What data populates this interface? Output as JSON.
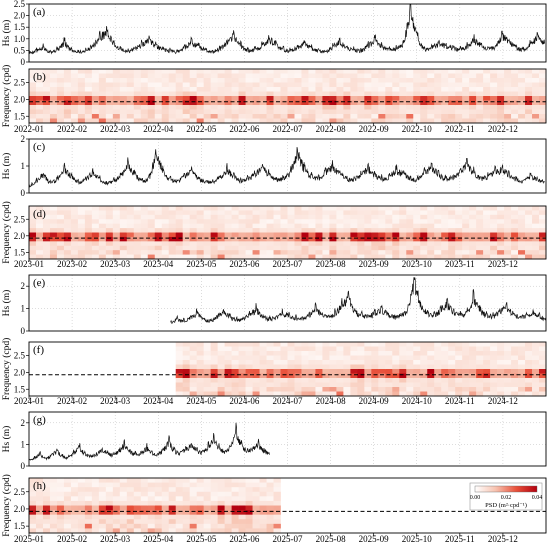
{
  "colorbar": {
    "label": "PSD (m²·cpd⁻¹)",
    "ticks": [
      "0.00",
      "0.02",
      "0.04"
    ],
    "range": [
      0,
      0.04
    ],
    "colors": [
      "#ffffff",
      "#f7c3b0",
      "#e8503a",
      "#b3000f"
    ]
  },
  "chart_data": [
    {
      "panel": "(a)",
      "type": "line",
      "year": 2022,
      "ylabel": "Hs (m)",
      "ylim": [
        0,
        2.5
      ],
      "yticks": [
        "0",
        "0.5",
        "1.0",
        "1.5",
        "2.0",
        "2.5"
      ],
      "x_start": "2022-01-01",
      "x_end": "2022-12-31",
      "series": [
        {
          "values": [
            0.45,
            0.55,
            0.7,
            0.5,
            0.6,
            0.95,
            0.6,
            0.5,
            0.55,
            0.8,
            1.2,
            1.5,
            0.9,
            0.6,
            0.5,
            0.7,
            0.85,
            1.1,
            0.8,
            0.6,
            0.55,
            0.5,
            0.7,
            1.0,
            0.75,
            0.6,
            0.5,
            0.65,
            0.9,
            1.3,
            0.8,
            0.55,
            0.6,
            0.8,
            1.15,
            0.85,
            0.6,
            0.55,
            0.7,
            0.95,
            0.7,
            0.55,
            0.5,
            0.75,
            1.0,
            0.7,
            0.6,
            0.55,
            0.8,
            1.05,
            0.75,
            0.6,
            0.65,
            0.85,
            2.45,
            1.2,
            0.6,
            0.7,
            0.9,
            0.8,
            0.7,
            0.6,
            0.75,
            1.1,
            0.85,
            0.65,
            0.7,
            1.3,
            1.0,
            0.7,
            0.6,
            0.85,
            1.2,
            0.9
          ]
        }
      ],
      "grid": true
    },
    {
      "panel": "(b)",
      "type": "heatmap",
      "year": 2022,
      "ylabel": "Frequency (cpd)",
      "ylim": [
        1.3,
        2.9
      ],
      "yticks": [
        "1.5",
        "2.0",
        "2.5"
      ],
      "reference_line": 1.93,
      "xticks": [
        "2022-01",
        "2022-02",
        "2022-03",
        "2022-04",
        "2022-05",
        "2022-06",
        "2022-07",
        "2022-08",
        "2022-09",
        "2022-10",
        "2022-11",
        "2022-12"
      ],
      "data_start_month": 0,
      "data_end_month": 12,
      "seed": 11
    },
    {
      "panel": "(c)",
      "type": "line",
      "year": 2023,
      "ylabel": "Hs (m)",
      "ylim": [
        0,
        2.0
      ],
      "yticks": [
        "0",
        "1",
        "2"
      ],
      "x_start": "2023-01-01",
      "x_end": "2023-12-31",
      "series": [
        {
          "values": [
            0.3,
            0.5,
            0.8,
            0.4,
            0.6,
            1.0,
            0.7,
            0.45,
            0.55,
            0.9,
            0.6,
            0.4,
            0.5,
            0.75,
            1.2,
            0.8,
            0.5,
            0.6,
            1.65,
            0.9,
            0.55,
            0.5,
            0.7,
            0.9,
            0.6,
            0.5,
            0.45,
            0.65,
            1.0,
            0.7,
            0.5,
            0.6,
            0.8,
            1.1,
            0.75,
            0.55,
            0.6,
            0.85,
            1.7,
            1.0,
            0.7,
            0.6,
            0.9,
            1.1,
            0.8,
            0.6,
            0.55,
            0.8,
            1.05,
            0.75,
            0.6,
            0.7,
            0.95,
            0.8,
            0.6,
            0.55,
            0.85,
            1.1,
            0.8,
            0.6,
            0.65,
            0.9,
            1.2,
            0.85,
            0.6,
            0.7,
            0.9,
            1.0,
            0.75,
            0.55,
            0.5,
            0.7,
            0.6,
            0.45
          ]
        }
      ],
      "grid": true
    },
    {
      "panel": "(d)",
      "type": "heatmap",
      "year": 2023,
      "ylabel": "Frequency (cpd)",
      "ylim": [
        1.3,
        2.9
      ],
      "yticks": [
        "1.5",
        "2.0",
        "2.5"
      ],
      "reference_line": 1.93,
      "xticks": [
        "2023-01",
        "2023-02",
        "2023-03",
        "2023-04",
        "2023-05",
        "2023-06",
        "2023-07",
        "2023-08",
        "2023-09",
        "2023-10",
        "2023-11",
        "2023-12"
      ],
      "data_start_month": 0,
      "data_end_month": 12,
      "seed": 23
    },
    {
      "panel": "(e)",
      "type": "line",
      "year": 2024,
      "ylabel": "Hs (m)",
      "ylim": [
        0,
        2.5
      ],
      "yticks": [
        "0",
        "1",
        "2"
      ],
      "x_start": "2024-04-10",
      "x_end": "2024-12-31",
      "series": [
        {
          "values": [
            0.4,
            0.6,
            0.5,
            0.7,
            0.9,
            0.6,
            0.5,
            0.7,
            1.0,
            0.7,
            0.55,
            0.6,
            0.85,
            1.1,
            0.75,
            0.6,
            0.7,
            0.9,
            0.8,
            0.65,
            0.6,
            0.8,
            1.15,
            0.8,
            0.7,
            0.9,
            1.3,
            1.7,
            1.0,
            0.8,
            0.75,
            0.9,
            1.1,
            0.85,
            0.7,
            0.8,
            1.0,
            2.5,
            1.3,
            0.9,
            0.75,
            1.1,
            1.4,
            0.9,
            0.8,
            0.9,
            1.7,
            1.0,
            0.8,
            0.75,
            1.0,
            1.2,
            0.85,
            0.7,
            0.8,
            0.9,
            0.75,
            0.6
          ]
        }
      ],
      "grid": true
    },
    {
      "panel": "(f)",
      "type": "heatmap",
      "year": 2024,
      "ylabel": "Frequency (cpd)",
      "ylim": [
        1.3,
        2.9
      ],
      "yticks": [
        "1.5",
        "2.0",
        "2.5"
      ],
      "reference_line": 1.93,
      "xticks": [
        "2024-01",
        "2024-02",
        "2024-03",
        "2024-04",
        "2024-05",
        "2024-06",
        "2024-07",
        "2024-08",
        "2024-09",
        "2024-10",
        "2024-11",
        "2024-12"
      ],
      "data_start_month": 3.3,
      "data_end_month": 12,
      "seed": 37
    },
    {
      "panel": "(g)",
      "type": "line",
      "year": 2025,
      "ylabel": "Hs (m)",
      "ylim": [
        0,
        2.5
      ],
      "yticks": [
        "0",
        "1",
        "2"
      ],
      "x_start": "2025-01-01",
      "x_end": "2025-06-20",
      "series": [
        {
          "values": [
            0.3,
            0.45,
            0.6,
            0.4,
            0.55,
            0.8,
            0.5,
            0.45,
            0.7,
            1.0,
            0.6,
            0.5,
            0.6,
            0.9,
            0.7,
            0.55,
            0.8,
            1.1,
            0.75,
            0.6,
            0.7,
            0.95,
            0.7,
            0.6,
            0.85,
            1.25,
            0.8,
            0.65,
            0.9,
            1.1,
            0.8,
            0.7,
            1.0,
            1.5,
            0.9,
            0.75,
            1.0,
            1.85,
            1.0,
            0.8,
            0.9,
            1.15,
            0.8,
            0.6
          ]
        }
      ],
      "grid": true
    },
    {
      "panel": "(h)",
      "type": "heatmap",
      "year": 2025,
      "ylabel": "Frequency (cpd)",
      "ylim": [
        1.3,
        2.9
      ],
      "yticks": [
        "1.5",
        "2.0",
        "2.5"
      ],
      "reference_line": 1.93,
      "xticks": [
        "2025-01",
        "2025-02",
        "2025-03",
        "2025-04",
        "2025-05",
        "2025-06",
        "2025-07",
        "2025-08",
        "2025-09",
        "2025-10",
        "2025-11",
        "2025-12"
      ],
      "data_start_month": 0,
      "data_end_month": 5.7,
      "seed": 51
    }
  ]
}
